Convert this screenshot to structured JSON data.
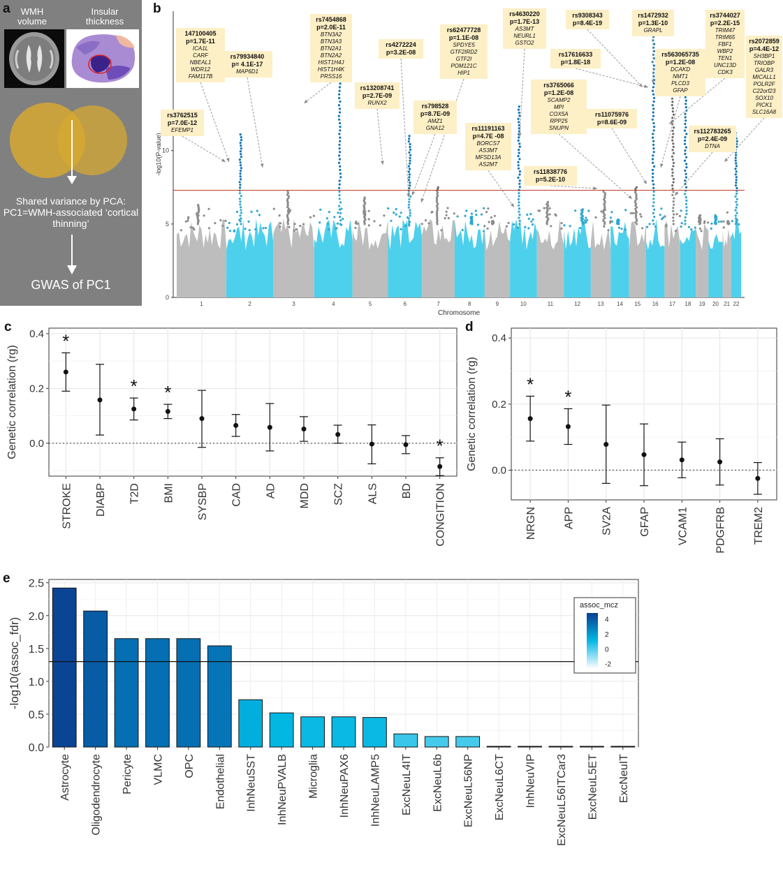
{
  "panel_a": {
    "letter": "a",
    "wmh_label": "WMH\nvolume",
    "insular_label": "Insular\nthickness",
    "shared_text": "Shared variance by PCA:\nPC1=WMH-associated ‘cortical thinning’",
    "gwas_text": "GWAS of PC1",
    "colors": {
      "background": "#808080",
      "venn": "#d6a832",
      "arrow": "#ffffff"
    }
  },
  "chart_data": [
    {
      "panel": "b",
      "type": "scatter",
      "subtype": "manhattan",
      "xlabel": "Chromosome",
      "ylabel": "-log10(P-value)",
      "yticks": [
        0,
        5,
        10
      ],
      "ylim": [
        0,
        19.5
      ],
      "threshold_line": 7.3,
      "threshold_color": "#c0392b",
      "chromosomes": [
        "1",
        "2",
        "3",
        "4",
        "5",
        "6",
        "7",
        "8",
        "9",
        "10",
        "11",
        "12",
        "13",
        "14",
        "15",
        "16",
        "17",
        "18",
        "19",
        "20",
        "21",
        "22"
      ],
      "chromosome_colors": [
        "#bdbdbd",
        "#4dd0ec"
      ],
      "sig_colors": {
        "grey_band": "#6d6d6d",
        "blue_band": "#0b74b5"
      },
      "chromosome_peaks": [
        6.3,
        11.1,
        7.2,
        18.0,
        6.8,
        11.0,
        7.5,
        5.5,
        5.2,
        13.0,
        6.5,
        6.0,
        7.2,
        5.3,
        7.5,
        18.0,
        14.2,
        15.0,
        5.6,
        5.6,
        5.2,
        11.2
      ],
      "annotations": [
        {
          "snp": "147100405",
          "p": "p=1.7E-11",
          "genes": [
            "ICA1L",
            "CARF",
            "NBEAL1",
            "WDR12",
            "FAM117B"
          ]
        },
        {
          "snp": "rs79934840",
          "p": "p= 4.1E-17",
          "genes": [
            "MAP6D1"
          ]
        },
        {
          "snp": "rs3762515",
          "p": "p=7.0E-12",
          "genes": [
            "EFEMP1"
          ]
        },
        {
          "snp": "rs7454868",
          "p": "p=2.0E-11",
          "genes": [
            "BTN3A2",
            "BTN3A3",
            "BTN2A1",
            "BTN2A2",
            "HIST1H4J",
            "HIST1H4K",
            "PRSS16"
          ]
        },
        {
          "snp": "rs13208741",
          "p": "p=2.7E-09",
          "genes": [
            "RUNX2"
          ]
        },
        {
          "snp": "rs4272224",
          "p": "p=3.2E-08",
          "genes": []
        },
        {
          "snp": "rs798528",
          "p": "p=8.7E-09",
          "genes": [
            "AMZ1",
            "GNA12"
          ]
        },
        {
          "snp": "rs62477728",
          "p": "p=1.1E-08",
          "genes": [
            "SPDYE5",
            "GTF2IRD2",
            "GTF2I",
            "POM121C",
            "HIP1"
          ]
        },
        {
          "snp": "rs4630220",
          "p": "p=1.7E-13",
          "genes": [
            "AS3MT",
            "NEURL1",
            "GSTO2"
          ]
        },
        {
          "snp": "rs11191163",
          "p": "p=4.7E -08",
          "genes": [
            "BORCS7",
            "AS3MT",
            "MFSD13A",
            "AS2MT"
          ]
        },
        {
          "snp": "rs9308343",
          "p": "p=8.4E-19",
          "genes": []
        },
        {
          "snp": "rs17616633",
          "p": "p=1.8E-18",
          "genes": []
        },
        {
          "snp": "rs3765066",
          "p": "p=1.2E-08",
          "genes": [
            "SCAMP2",
            "MPI",
            "COX5A",
            "RPP25",
            "SNUPN"
          ]
        },
        {
          "snp": "rs11838776",
          "p": "p=5.2E-10",
          "genes": []
        },
        {
          "snp": "rs11075976",
          "p": "p=8.6E-09",
          "genes": []
        },
        {
          "snp": "rs1472932",
          "p": "p=1.3E-10",
          "genes": [
            "GRAPL"
          ]
        },
        {
          "snp": "rs563065735",
          "p": "p=1.2E-08",
          "genes": [
            "DCAKD",
            "NMT1",
            "PLCD3",
            "GFAP"
          ]
        },
        {
          "snp": "rs3744027",
          "p": "p=2.2E-15",
          "genes": [
            "TRIM47",
            "TRIM65",
            "FBF1",
            "WBP2",
            "TEN1",
            "UNC13D",
            "CDK3"
          ]
        },
        {
          "snp": "rs112783265",
          "p": "p=2.4E-09",
          "genes": [
            "DTNA"
          ]
        },
        {
          "snp": "rs2072859",
          "p": "p=4.4E-12",
          "genes": [
            "SH3BP1",
            "TRIOBP",
            "GALR3",
            "MICALL1",
            "POLR2F",
            "C22orf23",
            "SOX10",
            "PICK1",
            "SLC16A8"
          ]
        }
      ]
    },
    {
      "panel": "c",
      "type": "scatter",
      "subtype": "errorbar",
      "ylabel": "Genetic correlation (rg)",
      "ylim": [
        -0.12,
        0.42
      ],
      "yticks": [
        0.0,
        0.2,
        0.4
      ],
      "reference_line": 0,
      "categories": [
        "STROKE",
        "DIABP",
        "T2D",
        "BMI",
        "SYSBP",
        "CAD",
        "AD",
        "MDD",
        "SCZ",
        "ALS",
        "BD",
        "CONGITION"
      ],
      "values": [
        0.26,
        0.158,
        0.125,
        0.116,
        0.09,
        0.065,
        0.058,
        0.052,
        0.032,
        -0.003,
        -0.005,
        -0.085
      ],
      "lower": [
        0.19,
        0.03,
        0.085,
        0.09,
        -0.015,
        0.025,
        -0.028,
        0.007,
        0.0,
        -0.075,
        -0.038,
        -0.118
      ],
      "upper": [
        0.33,
        0.288,
        0.165,
        0.142,
        0.193,
        0.105,
        0.145,
        0.097,
        0.066,
        0.067,
        0.028,
        -0.053
      ],
      "significant": [
        "*",
        "",
        "*",
        "*",
        "",
        "",
        "",
        "",
        "",
        "",
        "",
        "*"
      ],
      "grid": true
    },
    {
      "panel": "d",
      "type": "scatter",
      "subtype": "errorbar",
      "ylabel": "Genetic correlation (rg)",
      "ylim": [
        -0.09,
        0.43
      ],
      "yticks": [
        0.0,
        0.2,
        0.4
      ],
      "reference_line": 0,
      "categories": [
        "NRGN",
        "APP",
        "SV2A",
        "GFAP",
        "VCAM1",
        "PDGFRB",
        "TREM2"
      ],
      "values": [
        0.156,
        0.132,
        0.078,
        0.047,
        0.031,
        0.025,
        -0.025
      ],
      "lower": [
        0.088,
        0.078,
        -0.04,
        -0.047,
        -0.023,
        -0.045,
        -0.073
      ],
      "upper": [
        0.224,
        0.186,
        0.197,
        0.14,
        0.085,
        0.095,
        0.023
      ],
      "significant": [
        "*",
        "*",
        "",
        "",
        "",
        "",
        ""
      ],
      "grid": true
    },
    {
      "panel": "e",
      "type": "bar",
      "ylabel": "-log10(assoc_fdr)",
      "ylim": [
        0,
        2.55
      ],
      "yticks": [
        0.0,
        0.5,
        1.0,
        1.5,
        2.0,
        2.5
      ],
      "threshold_line": 1.3,
      "categories": [
        "Astrocyte",
        "Oligodendrocyte",
        "Pericyte",
        "VLMC",
        "OPC",
        "Endothelial",
        "InhNeuSST",
        "InhNeuPVALB",
        "Microglia",
        "InhNeuPAX6",
        "InhNeuLAMP5",
        "ExcNeuL4IT",
        "ExcNeuL6b",
        "ExcNeuL56NP",
        "ExcNeuL6CT",
        "InhNeuVIP",
        "ExcNeuL56ITCar3",
        "ExcNeuL5ET",
        "ExcNeuIT"
      ],
      "values": [
        2.42,
        2.07,
        1.65,
        1.65,
        1.65,
        1.54,
        0.72,
        0.52,
        0.46,
        0.46,
        0.45,
        0.2,
        0.16,
        0.16,
        0.01,
        0.01,
        0.01,
        0.01,
        0.01
      ],
      "assoc_mcz": [
        4.6,
        3.9,
        3.3,
        3.3,
        3.3,
        3.1,
        1.4,
        1.1,
        1.0,
        1.0,
        1.0,
        0.3,
        0.1,
        0.1,
        -2,
        -2,
        -2,
        -2,
        -2
      ],
      "legend_title": "assoc_mcz",
      "legend_ticks": [
        4,
        2,
        0,
        -2
      ],
      "legend_range": [
        -2.5,
        4.8
      ],
      "colorscale": [
        "#f5faff",
        "#00b6e3",
        "#0b3d91"
      ],
      "legend_position": "top-right",
      "grid": true
    }
  ],
  "labels": {
    "b": "b",
    "c": "c",
    "d": "d",
    "e": "e"
  }
}
